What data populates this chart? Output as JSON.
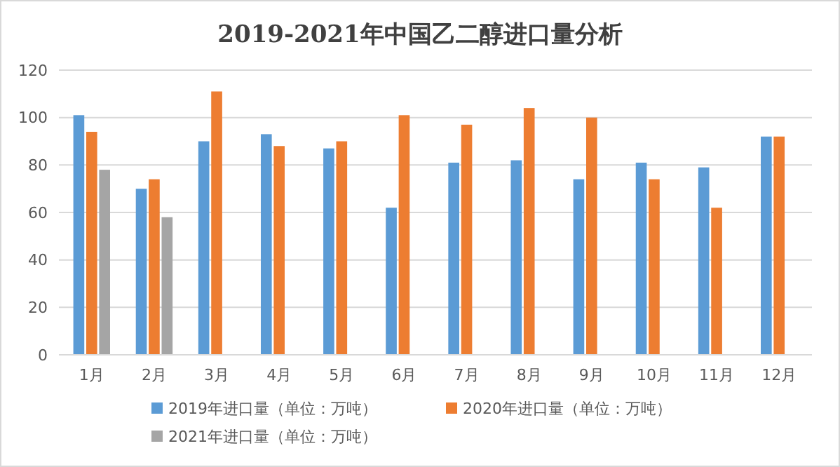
{
  "chart_data": {
    "type": "bar",
    "title": "2019-2021年中国乙二醇进口量分析",
    "categories": [
      "1月",
      "2月",
      "3月",
      "4月",
      "5月",
      "6月",
      "7月",
      "8月",
      "9月",
      "10月",
      "11月",
      "12月"
    ],
    "series": [
      {
        "name": "2019年进口量（单位：万吨）",
        "color": "#5b9bd5",
        "values": [
          101,
          70,
          90,
          93,
          87,
          62,
          81,
          82,
          74,
          81,
          79,
          92
        ]
      },
      {
        "name": "2020年进口量（单位：万吨）",
        "color": "#ed7d31",
        "values": [
          94,
          74,
          111,
          88,
          90,
          101,
          97,
          104,
          100,
          74,
          62,
          92
        ]
      },
      {
        "name": "2021年进口量（单位：万吨）",
        "color": "#a5a5a5",
        "values": [
          78,
          58,
          null,
          null,
          null,
          null,
          null,
          null,
          null,
          null,
          null,
          null
        ]
      }
    ],
    "ylim": [
      0,
      120
    ],
    "yticks": [
      0,
      20,
      40,
      60,
      80,
      100,
      120
    ],
    "grid": "y",
    "legend": "bottom"
  }
}
